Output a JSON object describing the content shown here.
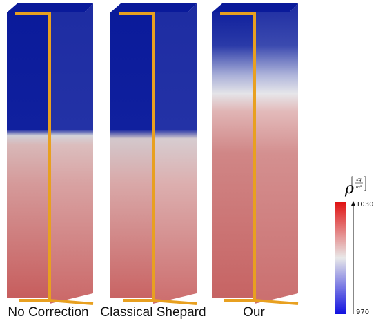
{
  "panels": [
    {
      "label": "No Correction"
    },
    {
      "label": "Classical Shepard"
    },
    {
      "label": "Our"
    }
  ],
  "colorbar": {
    "symbol": "ρ",
    "unit_numerator": "kg",
    "unit_denominator": "m³",
    "max": 1030,
    "min": 970
  }
}
